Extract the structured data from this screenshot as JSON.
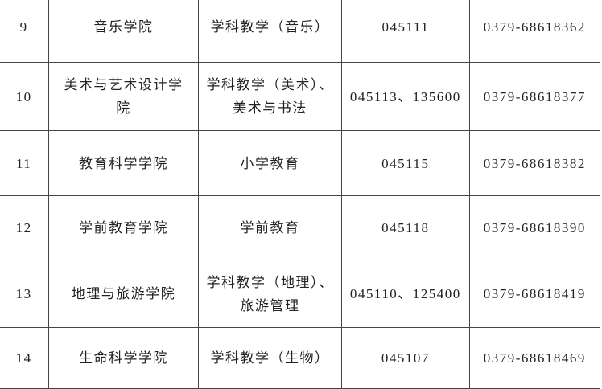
{
  "rows": [
    {
      "no": "9",
      "college": [
        "音乐学院"
      ],
      "major": [
        "学科教学（音乐）"
      ],
      "code": "045111",
      "phone": "0379-68618362"
    },
    {
      "no": "10",
      "college": [
        "美术与艺术设计学",
        "院"
      ],
      "major": [
        "学科教学（美术）、",
        "美术与书法"
      ],
      "code": "045113、135600",
      "phone": "0379-68618377"
    },
    {
      "no": "11",
      "college": [
        "教育科学学院"
      ],
      "major": [
        "小学教育"
      ],
      "code": "045115",
      "phone": "0379-68618382"
    },
    {
      "no": "12",
      "college": [
        "学前教育学院"
      ],
      "major": [
        "学前教育"
      ],
      "code": "045118",
      "phone": "0379-68618390"
    },
    {
      "no": "13",
      "college": [
        "地理与旅游学院"
      ],
      "major": [
        "学科教学（地理）、",
        "旅游管理"
      ],
      "code": "045110、125400",
      "phone": "0379-68618419"
    },
    {
      "no": "14",
      "college": [
        "生命科学学院"
      ],
      "major": [
        "学科教学（生物）"
      ],
      "code": "045107",
      "phone": "0379-68618469"
    }
  ]
}
